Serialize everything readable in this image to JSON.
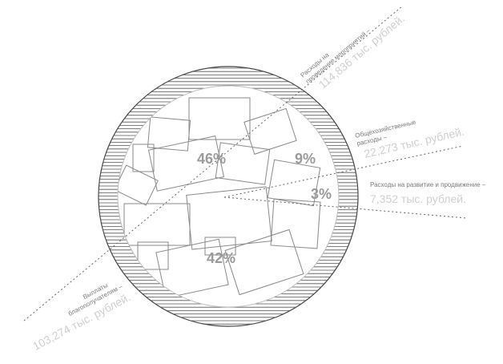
{
  "chart_data": {
    "type": "pie",
    "title": "",
    "series": [
      {
        "key": "events",
        "percent_label": "46%",
        "label_top": "Расходы на",
        "label_bottom": "проведение мероприятий –",
        "value_label": "114,836 тыс. рублей.",
        "value": 114836
      },
      {
        "key": "general",
        "percent_label": "9%",
        "label_top": "Общехозяйственные",
        "label_bottom": "расходы –",
        "value_label": "22,273 тыс. рублей.",
        "value": 22273
      },
      {
        "key": "development",
        "percent_label": "3%",
        "label_top": "Расходы на развитие и продвижение –",
        "label_bottom": "",
        "value_label": "7,352 тыс. рублей.",
        "value": 7352
      },
      {
        "key": "payments",
        "percent_label": "42%",
        "label_top": "Выплаты",
        "label_bottom": "благополучателям –",
        "value_label": "103,274 тыс. рублей.",
        "value": 103274
      }
    ],
    "value_unit": "тыс. рублей",
    "colors": {
      "percent": "#9a9a9a",
      "label_dark": "#7a7a7a",
      "label_light": "#cfcfcf",
      "rim_hatch": "#555555",
      "photo_outline": "#8a8a8a",
      "leader": "#666666"
    }
  }
}
